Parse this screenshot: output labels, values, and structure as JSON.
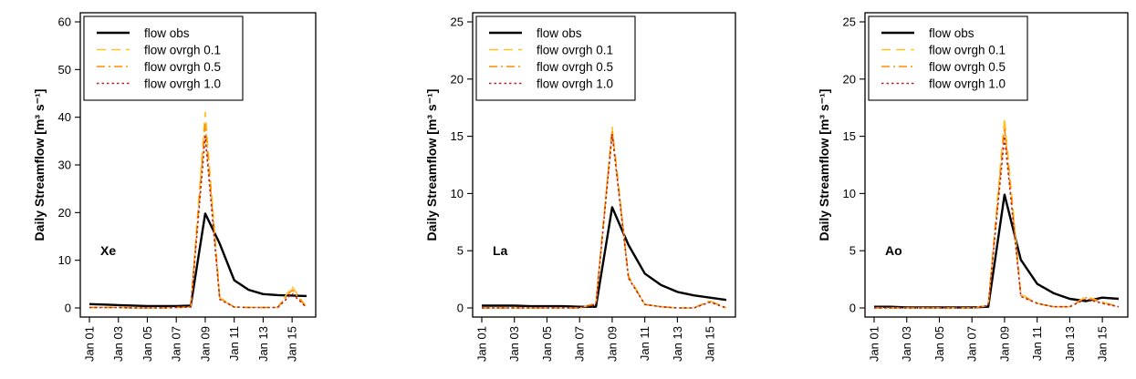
{
  "chart_data": [
    {
      "type": "line",
      "title": "",
      "panel_label": "Xe",
      "ylabel": "Daily Streamflow  [m³ s⁻¹]",
      "xlabel": "",
      "categories": [
        "Jan 01",
        "Jan 02",
        "Jan 03",
        "Jan 04",
        "Jan 05",
        "Jan 06",
        "Jan 07",
        "Jan 08",
        "Jan 09",
        "Jan 10",
        "Jan 11",
        "Jan 12",
        "Jan 13",
        "Jan 14",
        "Jan 15",
        "Jan 16"
      ],
      "xticks": [
        "Jan 01",
        "Jan 03",
        "Jan 05",
        "Jan 07",
        "Jan 09",
        "Jan 11",
        "Jan 13",
        "Jan 15"
      ],
      "ylim": [
        0,
        60
      ],
      "yticks": [
        0,
        10,
        20,
        30,
        40,
        50,
        60
      ],
      "grid": false,
      "legend_position": "top-left",
      "series": [
        {
          "name": "flow obs",
          "color": "#000000",
          "style": "solid",
          "values": [
            0.8,
            0.7,
            0.6,
            0.5,
            0.4,
            0.4,
            0.4,
            0.5,
            19.8,
            13.5,
            5.8,
            3.8,
            2.9,
            2.7,
            2.6,
            2.5
          ]
        },
        {
          "name": "flow ovrgh 0.1",
          "color": "#FFC125",
          "style": "dash",
          "values": [
            0.1,
            0.1,
            0.1,
            0.0,
            0.0,
            0.0,
            0.1,
            0.2,
            41.0,
            2.2,
            0.2,
            0.1,
            0.1,
            0.1,
            4.5,
            0.1
          ]
        },
        {
          "name": "flow ovrgh 0.5",
          "color": "#FF8C00",
          "style": "dashdot",
          "values": [
            0.1,
            0.1,
            0.1,
            0.0,
            0.0,
            0.0,
            0.1,
            0.2,
            38.5,
            2.0,
            0.2,
            0.1,
            0.1,
            0.1,
            3.8,
            0.1
          ]
        },
        {
          "name": "flow ovrgh 1.0",
          "color": "#B22222",
          "style": "dot",
          "values": [
            0.1,
            0.1,
            0.1,
            0.0,
            0.0,
            0.0,
            0.1,
            0.2,
            36.0,
            1.8,
            0.2,
            0.1,
            0.1,
            0.1,
            3.0,
            0.1
          ]
        }
      ]
    },
    {
      "type": "line",
      "title": "",
      "panel_label": "La",
      "ylabel": "Daily Streamflow  [m³ s⁻¹]",
      "xlabel": "",
      "categories": [
        "Jan 01",
        "Jan 02",
        "Jan 03",
        "Jan 04",
        "Jan 05",
        "Jan 06",
        "Jan 07",
        "Jan 08",
        "Jan 09",
        "Jan 10",
        "Jan 11",
        "Jan 12",
        "Jan 13",
        "Jan 14",
        "Jan 15",
        "Jan 16"
      ],
      "xticks": [
        "Jan 01",
        "Jan 03",
        "Jan 05",
        "Jan 07",
        "Jan 09",
        "Jan 11",
        "Jan 13",
        "Jan 15"
      ],
      "ylim": [
        0,
        25
      ],
      "yticks": [
        0,
        5,
        10,
        15,
        20,
        25
      ],
      "grid": false,
      "legend_position": "top-left",
      "series": [
        {
          "name": "flow obs",
          "color": "#000000",
          "style": "solid",
          "values": [
            0.2,
            0.2,
            0.2,
            0.15,
            0.15,
            0.15,
            0.1,
            0.1,
            8.8,
            5.5,
            3.0,
            2.0,
            1.4,
            1.1,
            0.9,
            0.7
          ]
        },
        {
          "name": "flow ovrgh 0.1",
          "color": "#FFC125",
          "style": "dash",
          "values": [
            0.0,
            0.0,
            0.0,
            0.0,
            0.0,
            0.0,
            0.0,
            0.4,
            15.8,
            2.8,
            0.3,
            0.1,
            0.0,
            0.0,
            0.6,
            0.0
          ]
        },
        {
          "name": "flow ovrgh 0.5",
          "color": "#FF8C00",
          "style": "dashdot",
          "values": [
            0.0,
            0.0,
            0.0,
            0.0,
            0.0,
            0.0,
            0.0,
            0.4,
            15.5,
            2.7,
            0.3,
            0.1,
            0.0,
            0.0,
            0.6,
            0.0
          ]
        },
        {
          "name": "flow ovrgh 1.0",
          "color": "#B22222",
          "style": "dot",
          "values": [
            0.0,
            0.0,
            0.0,
            0.0,
            0.0,
            0.0,
            0.0,
            0.3,
            15.2,
            2.6,
            0.3,
            0.1,
            0.0,
            0.0,
            0.5,
            0.0
          ]
        }
      ]
    },
    {
      "type": "line",
      "title": "",
      "panel_label": "Ao",
      "ylabel": "Daily Streamflow  [m³ s⁻¹]",
      "xlabel": "",
      "categories": [
        "Jan 01",
        "Jan 02",
        "Jan 03",
        "Jan 04",
        "Jan 05",
        "Jan 06",
        "Jan 07",
        "Jan 08",
        "Jan 09",
        "Jan 10",
        "Jan 11",
        "Jan 12",
        "Jan 13",
        "Jan 14",
        "Jan 15",
        "Jan 16"
      ],
      "xticks": [
        "Jan 01",
        "Jan 03",
        "Jan 05",
        "Jan 07",
        "Jan 09",
        "Jan 11",
        "Jan 13",
        "Jan 15"
      ],
      "ylim": [
        0,
        25
      ],
      "yticks": [
        0,
        5,
        10,
        15,
        20,
        25
      ],
      "grid": false,
      "legend_position": "top-left",
      "series": [
        {
          "name": "flow obs",
          "color": "#000000",
          "style": "solid",
          "values": [
            0.1,
            0.1,
            0.05,
            0.05,
            0.05,
            0.05,
            0.05,
            0.1,
            9.9,
            4.2,
            2.1,
            1.3,
            0.8,
            0.6,
            0.9,
            0.8
          ]
        },
        {
          "name": "flow ovrgh 0.1",
          "color": "#FFC125",
          "style": "dash",
          "values": [
            0.0,
            0.0,
            0.0,
            0.0,
            0.0,
            0.0,
            0.0,
            0.2,
            16.6,
            1.2,
            0.4,
            0.1,
            0.1,
            1.0,
            0.5,
            0.1
          ]
        },
        {
          "name": "flow ovrgh 0.5",
          "color": "#FF8C00",
          "style": "dashdot",
          "values": [
            0.0,
            0.0,
            0.0,
            0.0,
            0.0,
            0.0,
            0.0,
            0.2,
            15.8,
            1.1,
            0.4,
            0.1,
            0.1,
            0.9,
            0.5,
            0.1
          ]
        },
        {
          "name": "flow ovrgh 1.0",
          "color": "#B22222",
          "style": "dot",
          "values": [
            0.0,
            0.0,
            0.0,
            0.0,
            0.0,
            0.0,
            0.0,
            0.2,
            15.0,
            1.0,
            0.4,
            0.1,
            0.1,
            0.8,
            0.4,
            0.1
          ]
        }
      ]
    }
  ]
}
